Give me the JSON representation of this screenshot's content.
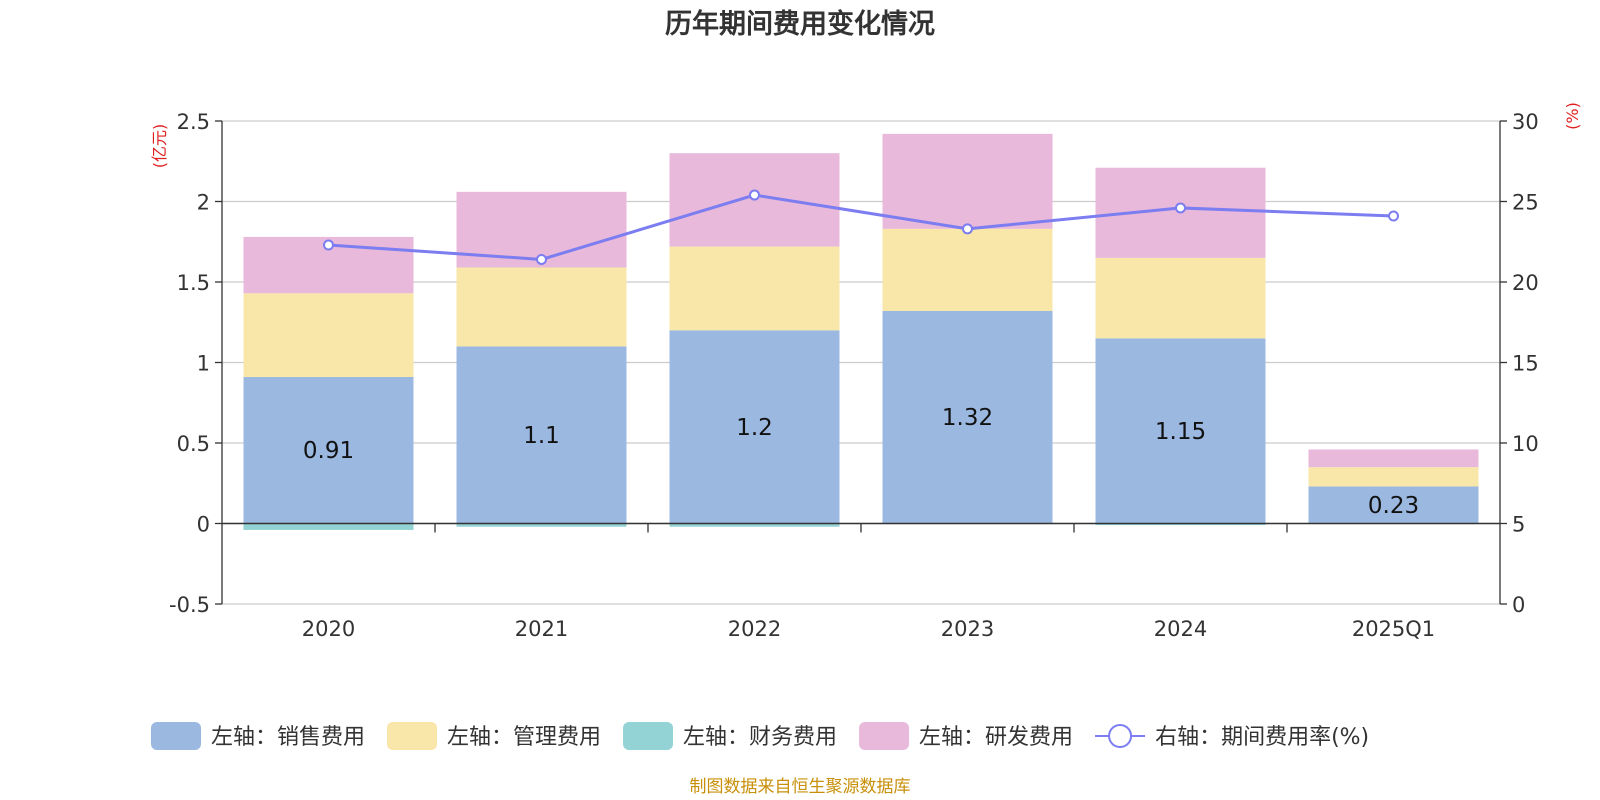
{
  "chart_data": {
    "type": "bar",
    "title": "历年期间费用变化情况",
    "categories": [
      "2020",
      "2021",
      "2022",
      "2023",
      "2024",
      "2025Q1"
    ],
    "stacked": true,
    "y_left": {
      "unit": "(亿元)",
      "ylim": [
        -0.5,
        2.5
      ],
      "ticks": [
        "-0.5",
        "0",
        "0.5",
        "1",
        "1.5",
        "2",
        "2.5"
      ]
    },
    "y_right": {
      "unit": "(%)",
      "ylim": [
        0,
        30
      ],
      "ticks": [
        "0",
        "5",
        "10",
        "15",
        "20",
        "25",
        "30"
      ]
    },
    "grid": true,
    "legend_position": "bottom",
    "series": [
      {
        "name": "左轴：销售费用",
        "axis": "left",
        "kind": "bar",
        "color": "#9bb8e1",
        "values": [
          0.91,
          1.1,
          1.2,
          1.32,
          1.15,
          0.23
        ],
        "labels": [
          "0.91",
          "1.1",
          "1.2",
          "1.32",
          "1.15",
          "0.23"
        ]
      },
      {
        "name": "左轴：管理费用",
        "axis": "left",
        "kind": "bar",
        "color": "#f8e7a8",
        "values": [
          0.52,
          0.49,
          0.52,
          0.51,
          0.5,
          0.12
        ]
      },
      {
        "name": "左轴：财务费用",
        "axis": "left",
        "kind": "bar",
        "color": "#93d3d6",
        "values": [
          -0.04,
          -0.02,
          -0.02,
          0.0,
          -0.01,
          0.0
        ]
      },
      {
        "name": "左轴：研发费用",
        "axis": "left",
        "kind": "bar",
        "color": "#e8b9da",
        "values": [
          0.35,
          0.47,
          0.58,
          0.59,
          0.56,
          0.11
        ]
      },
      {
        "name": "右轴：期间费用率(%)",
        "axis": "right",
        "kind": "line",
        "color": "#7b7df0",
        "values": [
          22.3,
          21.4,
          25.4,
          23.3,
          24.6,
          24.1
        ]
      }
    ],
    "colors": {
      "unit_label": "#e02020",
      "source": "#c8900a",
      "axis": "#333333",
      "grid": "#cccccc"
    },
    "source": "制图数据来自恒生聚源数据库"
  }
}
